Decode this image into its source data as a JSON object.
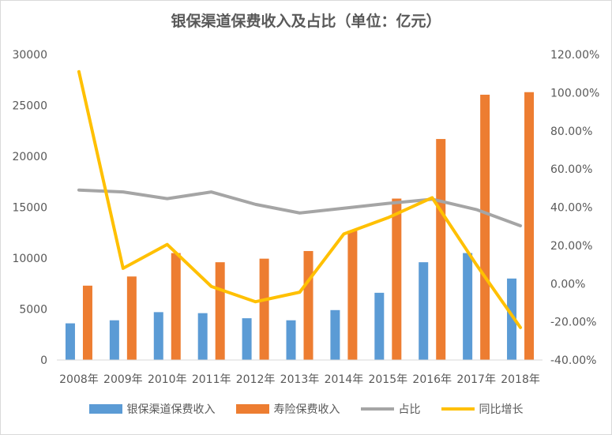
{
  "chart_data": {
    "type": "bar",
    "title": "银保渠道保费收入及占比（单位：亿元）",
    "categories": [
      "2008年",
      "2009年",
      "2010年",
      "2011年",
      "2012年",
      "2013年",
      "2014年",
      "2015年",
      "2016年",
      "2017年",
      "2018年"
    ],
    "y_left": {
      "ylim": [
        0,
        30000
      ],
      "ticks": [
        "0",
        "5000",
        "10000",
        "15000",
        "20000",
        "25000",
        "30000"
      ]
    },
    "y_right": {
      "ylim": [
        -40,
        120
      ],
      "ticks": [
        "-40.00%",
        "-20.00%",
        "0.00%",
        "20.00%",
        "40.00%",
        "60.00%",
        "80.00%",
        "100.00%",
        "120.00%"
      ]
    },
    "series": [
      {
        "name": "银保渠道保费收入",
        "kind": "bar",
        "axis": "left",
        "color": "#5b9bd5",
        "values": [
          3600,
          3900,
          4700,
          4600,
          4100,
          3900,
          4900,
          6600,
          9600,
          10500,
          8000
        ]
      },
      {
        "name": "寿险保费收入",
        "kind": "bar",
        "axis": "left",
        "color": "#ed7d31",
        "values": [
          7300,
          8200,
          10500,
          9600,
          9950,
          10700,
          12700,
          15850,
          21700,
          26050,
          26300
        ]
      },
      {
        "name": "占比",
        "kind": "line",
        "axis": "right",
        "color": "#a5a5a5",
        "values": [
          49,
          48,
          44.5,
          48,
          41.5,
          37,
          39.5,
          42,
          44.2,
          38.8,
          30.3
        ]
      },
      {
        "name": "同比增长",
        "kind": "line",
        "axis": "right",
        "color": "#ffc000",
        "values": [
          111,
          8,
          20.5,
          -1.5,
          -9.5,
          -4.5,
          26,
          34.5,
          45,
          10,
          -23
        ]
      }
    ],
    "legend_position": "bottom",
    "grid": false
  }
}
